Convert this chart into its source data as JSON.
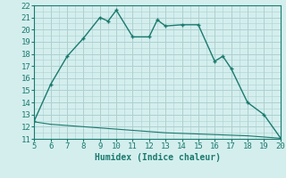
{
  "xlabel": "Humidex (Indice chaleur)",
  "line1_x": [
    5,
    6,
    7,
    8,
    9,
    9.5,
    10,
    11,
    12,
    12.5,
    13,
    14,
    15,
    16,
    16.5,
    17,
    18,
    19,
    20
  ],
  "line1_y": [
    12.5,
    15.5,
    17.8,
    19.3,
    21.0,
    20.7,
    21.6,
    19.4,
    19.4,
    20.8,
    20.3,
    20.4,
    20.4,
    17.4,
    17.8,
    16.8,
    14.0,
    13.0,
    11.1
  ],
  "line2_x": [
    5,
    6,
    7,
    8,
    9,
    10,
    11,
    12,
    13,
    14,
    15,
    16,
    17,
    18,
    19,
    20
  ],
  "line2_y": [
    12.4,
    12.2,
    12.1,
    12.0,
    11.9,
    11.8,
    11.7,
    11.6,
    11.5,
    11.45,
    11.4,
    11.35,
    11.3,
    11.25,
    11.15,
    11.05
  ],
  "line_color": "#1a7a6e",
  "bg_color": "#d4eeee",
  "grid_color": "#aed0d0",
  "xlim": [
    5,
    20
  ],
  "ylim": [
    11,
    22
  ],
  "xticks": [
    5,
    6,
    7,
    8,
    9,
    10,
    11,
    12,
    13,
    14,
    15,
    16,
    17,
    18,
    19,
    20
  ],
  "yticks": [
    11,
    12,
    13,
    14,
    15,
    16,
    17,
    18,
    19,
    20,
    21,
    22
  ],
  "tick_fontsize": 6.5,
  "xlabel_fontsize": 7.0
}
